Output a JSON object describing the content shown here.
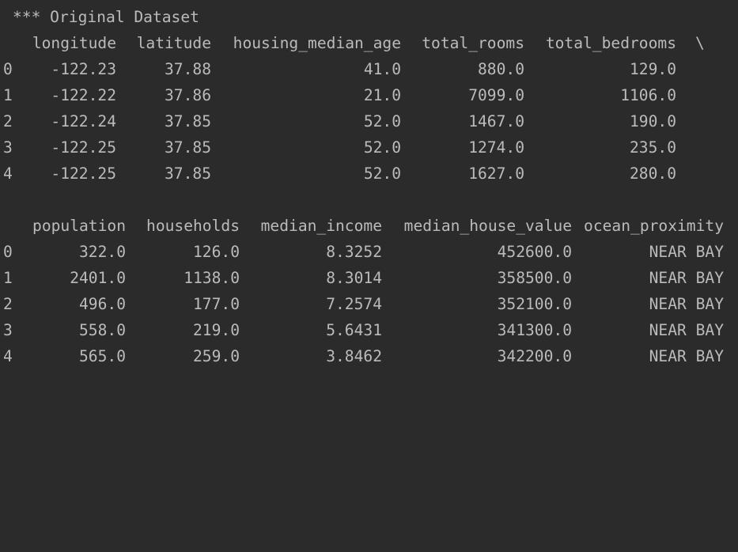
{
  "console": {
    "title": "*** Original Dataset",
    "table1": {
      "headers": [
        "longitude",
        "latitude",
        "housing_median_age",
        "total_rooms",
        "total_bedrooms"
      ],
      "continuation": "\\",
      "index": [
        "0",
        "1",
        "2",
        "3",
        "4"
      ],
      "rows": [
        [
          "-122.23",
          "37.88",
          "41.0",
          "880.0",
          "129.0"
        ],
        [
          "-122.22",
          "37.86",
          "21.0",
          "7099.0",
          "1106.0"
        ],
        [
          "-122.24",
          "37.85",
          "52.0",
          "1467.0",
          "190.0"
        ],
        [
          "-122.25",
          "37.85",
          "52.0",
          "1274.0",
          "235.0"
        ],
        [
          "-122.25",
          "37.85",
          "52.0",
          "1627.0",
          "280.0"
        ]
      ]
    },
    "table2": {
      "headers": [
        "population",
        "households",
        "median_income",
        "median_house_value",
        "ocean_proximity"
      ],
      "index": [
        "0",
        "1",
        "2",
        "3",
        "4"
      ],
      "rows": [
        [
          "322.0",
          "126.0",
          "8.3252",
          "452600.0",
          "NEAR BAY"
        ],
        [
          "2401.0",
          "1138.0",
          "8.3014",
          "358500.0",
          "NEAR BAY"
        ],
        [
          "496.0",
          "177.0",
          "7.2574",
          "352100.0",
          "NEAR BAY"
        ],
        [
          "558.0",
          "219.0",
          "5.6431",
          "341300.0",
          "NEAR BAY"
        ],
        [
          "565.0",
          "259.0",
          "3.8462",
          "342200.0",
          "NEAR BAY"
        ]
      ]
    }
  },
  "colors": {
    "background": "#2b2b2b",
    "text": "#bbbbbb"
  }
}
